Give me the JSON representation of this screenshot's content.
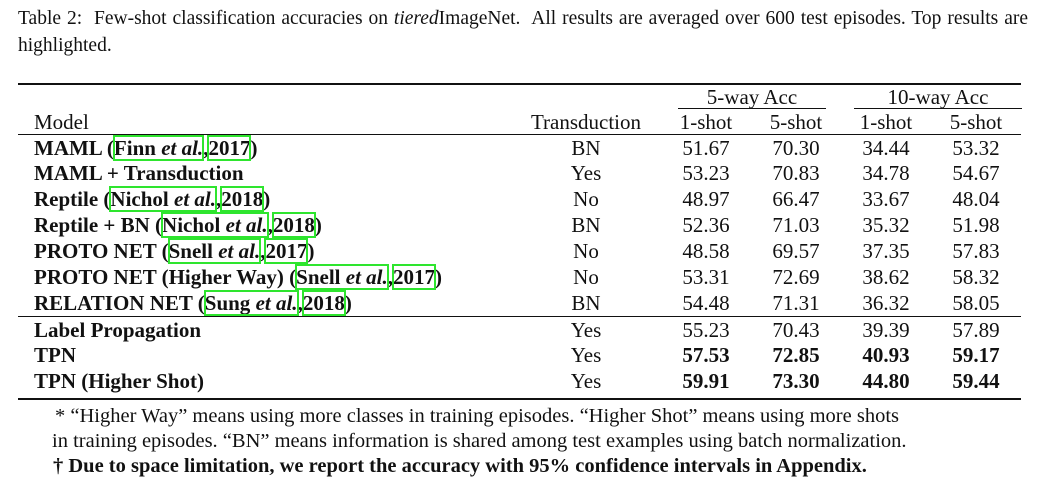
{
  "caption": {
    "label": "Table 2:",
    "text_before": "Few-shot classification accuracies on ",
    "dataset_italic": "tiered",
    "dataset_rest": "ImageNet.",
    "text_after": "All results are averaged over 600 test episodes. Top results are highlighted."
  },
  "header": {
    "group_5way": "5-way Acc",
    "group_10way": "10-way Acc",
    "col_model": "Model",
    "col_transduction": "Transduction",
    "col_1shot_a": "1-shot",
    "col_5shot_a": "5-shot",
    "col_1shot_b": "1-shot",
    "col_5shot_b": "5-shot"
  },
  "rows": [
    {
      "pre": "MAML (",
      "cite1": "Finn ",
      "cite1i": "et al.",
      "sep": ",",
      "cite2": "2017",
      "post": ")",
      "trans": "BN",
      "v1": "51.67",
      "v2": "70.30",
      "v3": "34.44",
      "v4": "53.32"
    },
    {
      "pre": "MAML + Transduction",
      "trans": "Yes",
      "v1": "53.23",
      "v2": "70.83",
      "v3": "34.78",
      "v4": "54.67"
    },
    {
      "pre": "Reptile (",
      "cite1": "Nichol ",
      "cite1i": "et al.",
      "sep": ",",
      "cite2": "2018",
      "post": ")",
      "trans": "No",
      "v1": "48.97",
      "v2": "66.47",
      "v3": "33.67",
      "v4": "48.04"
    },
    {
      "pre": "Reptile + BN (",
      "cite1": "Nichol ",
      "cite1i": "et al.",
      "sep": ",",
      "cite2": "2018",
      "post": ")",
      "trans": "BN",
      "v1": "52.36",
      "v2": "71.03",
      "v3": "35.32",
      "v4": "51.98"
    },
    {
      "pre": "PROTO NET (",
      "cite1": "Snell ",
      "cite1i": "et al.",
      "sep": ",",
      "cite2": "2017",
      "post": ")",
      "trans": "No",
      "v1": "48.58",
      "v2": "69.57",
      "v3": "37.35",
      "v4": "57.83"
    },
    {
      "pre": "PROTO NET (Higher Way) (",
      "cite1": "Snell ",
      "cite1i": "et al.",
      "sep": ",",
      "cite2": "2017",
      "post": ")",
      "trans": "No",
      "v1": "53.31",
      "v2": "72.69",
      "v3": "38.62",
      "v4": "58.32"
    },
    {
      "pre": "RELATION NET (",
      "cite1": "Sung ",
      "cite1i": "et al.",
      "sep": ",",
      "cite2": "2018",
      "post": ")",
      "trans": "BN",
      "v1": "54.48",
      "v2": "71.31",
      "v3": "36.32",
      "v4": "58.05"
    },
    {
      "pre": "Label Propagation",
      "trans": "Yes",
      "v1": "55.23",
      "v2": "70.43",
      "v3": "39.39",
      "v4": "57.89"
    },
    {
      "pre": "TPN",
      "trans": "Yes",
      "v1": "57.53",
      "v2": "72.85",
      "v3": "40.93",
      "v4": "59.17"
    },
    {
      "pre": "TPN (Higher Shot)",
      "trans": "Yes",
      "v1": "59.91",
      "v2": "73.30",
      "v3": "44.80",
      "v4": "59.44"
    }
  ],
  "bold_rows": [
    8,
    9
  ],
  "notes": {
    "line1": "* “Higher Way” means using more classes in training episodes. “Higher Shot” means using more shots",
    "line2": "in training episodes. “BN” means information is shared among test examples using batch normalization.",
    "line3": "† Due to space limitation, we report the accuracy with 95% confidence intervals in Appendix."
  }
}
